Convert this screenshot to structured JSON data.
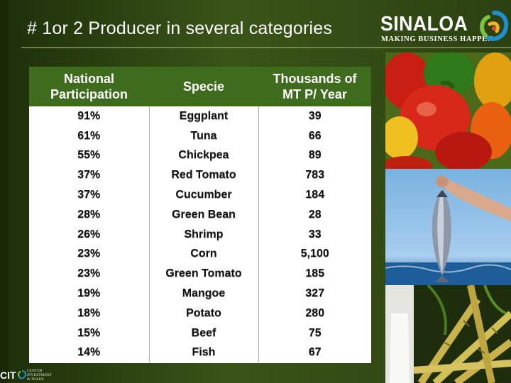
{
  "slide": {
    "title": "# 1or 2 Producer in several categories"
  },
  "logo": {
    "name": "SINALOA",
    "tagline": "MAKING BUSINESS HAPPEN"
  },
  "footer_logo": {
    "abbr": "CIT",
    "lines": [
      "CENTER",
      "INVESTMENT",
      "& TRADE"
    ]
  },
  "table": {
    "headers": {
      "participation": "National Participation",
      "specie": "Specie",
      "volume": "Thousands of MT  P/ Year"
    },
    "rows": [
      {
        "participation": "91%",
        "specie": "Eggplant",
        "volume": "39"
      },
      {
        "participation": "61%",
        "specie": "Tuna",
        "volume": "66"
      },
      {
        "participation": "55%",
        "specie": "Chickpea",
        "volume": "89"
      },
      {
        "participation": "37%",
        "specie": "Red Tomato",
        "volume": "783"
      },
      {
        "participation": "37%",
        "specie": "Cucumber",
        "volume": "184"
      },
      {
        "participation": "28%",
        "specie": "Green Bean",
        "volume": "28"
      },
      {
        "participation": "26%",
        "specie": "Shrimp",
        "volume": "33"
      },
      {
        "participation": "23%",
        "specie": "Corn",
        "volume": "5,100"
      },
      {
        "participation": "23%",
        "specie": "Green Tomato",
        "volume": "185"
      },
      {
        "participation": "19%",
        "specie": "Mangoe",
        "volume": "327"
      },
      {
        "participation": "18%",
        "specie": "Potato",
        "volume": "280"
      },
      {
        "participation": "15%",
        "specie": "Beef",
        "volume": "75"
      },
      {
        "participation": "14%",
        "specie": "Fish",
        "volume": "67"
      }
    ]
  },
  "colors": {
    "header_bg": "#3e6b1c",
    "slide_bg": "#2f4512"
  }
}
